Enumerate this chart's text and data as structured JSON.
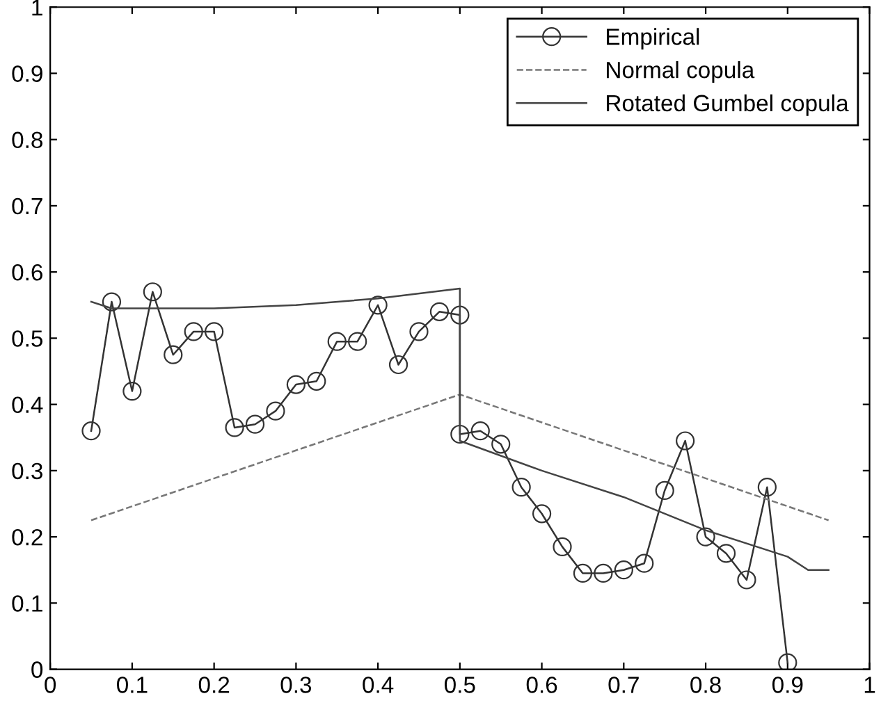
{
  "chart_data": {
    "type": "line",
    "xlim": [
      0,
      1
    ],
    "ylim": [
      0,
      1
    ],
    "xticks": [
      0,
      0.1,
      0.2,
      0.3,
      0.4,
      0.5,
      0.6,
      0.7,
      0.8,
      0.9,
      1
    ],
    "yticks": [
      0,
      0.1,
      0.2,
      0.3,
      0.4,
      0.5,
      0.6,
      0.7,
      0.8,
      0.9,
      1
    ],
    "legend": "top right",
    "grid": false,
    "series": [
      {
        "name": "Empirical",
        "color": "#333333",
        "marker": "circle",
        "line_style": "solid",
        "x": [
          0.05,
          0.075,
          0.1,
          0.125,
          0.15,
          0.175,
          0.2,
          0.225,
          0.25,
          0.275,
          0.3,
          0.325,
          0.35,
          0.375,
          0.4,
          0.425,
          0.45,
          0.475,
          0.5,
          0.5,
          0.525,
          0.55,
          0.575,
          0.6,
          0.625,
          0.65,
          0.675,
          0.7,
          0.725,
          0.75,
          0.775,
          0.8,
          0.825,
          0.85,
          0.875,
          0.9
        ],
        "values": [
          0.36,
          0.555,
          0.42,
          0.57,
          0.475,
          0.51,
          0.51,
          0.365,
          0.37,
          0.39,
          0.43,
          0.435,
          0.495,
          0.495,
          0.55,
          0.46,
          0.51,
          0.54,
          0.535,
          0.355,
          0.36,
          0.34,
          0.275,
          0.235,
          0.185,
          0.145,
          0.145,
          0.15,
          0.16,
          0.27,
          0.345,
          0.2,
          0.175,
          0.135,
          0.275,
          0.01
        ]
      },
      {
        "name": "Normal copula",
        "color": "#777777",
        "marker": "none",
        "line_style": "dashed",
        "x": [
          0.05,
          0.5,
          0.95
        ],
        "values": [
          0.225,
          0.415,
          0.225
        ]
      },
      {
        "name": "Rotated Gumbel copula",
        "color": "#444444",
        "marker": "none",
        "line_style": "solid",
        "x": [
          0.05,
          0.075,
          0.2,
          0.3,
          0.4,
          0.5,
          0.5,
          0.6,
          0.7,
          0.8,
          0.9,
          0.925,
          0.95
        ],
        "values": [
          0.555,
          0.545,
          0.545,
          0.55,
          0.56,
          0.575,
          0.345,
          0.3,
          0.26,
          0.21,
          0.17,
          0.15,
          0.15
        ]
      }
    ]
  }
}
